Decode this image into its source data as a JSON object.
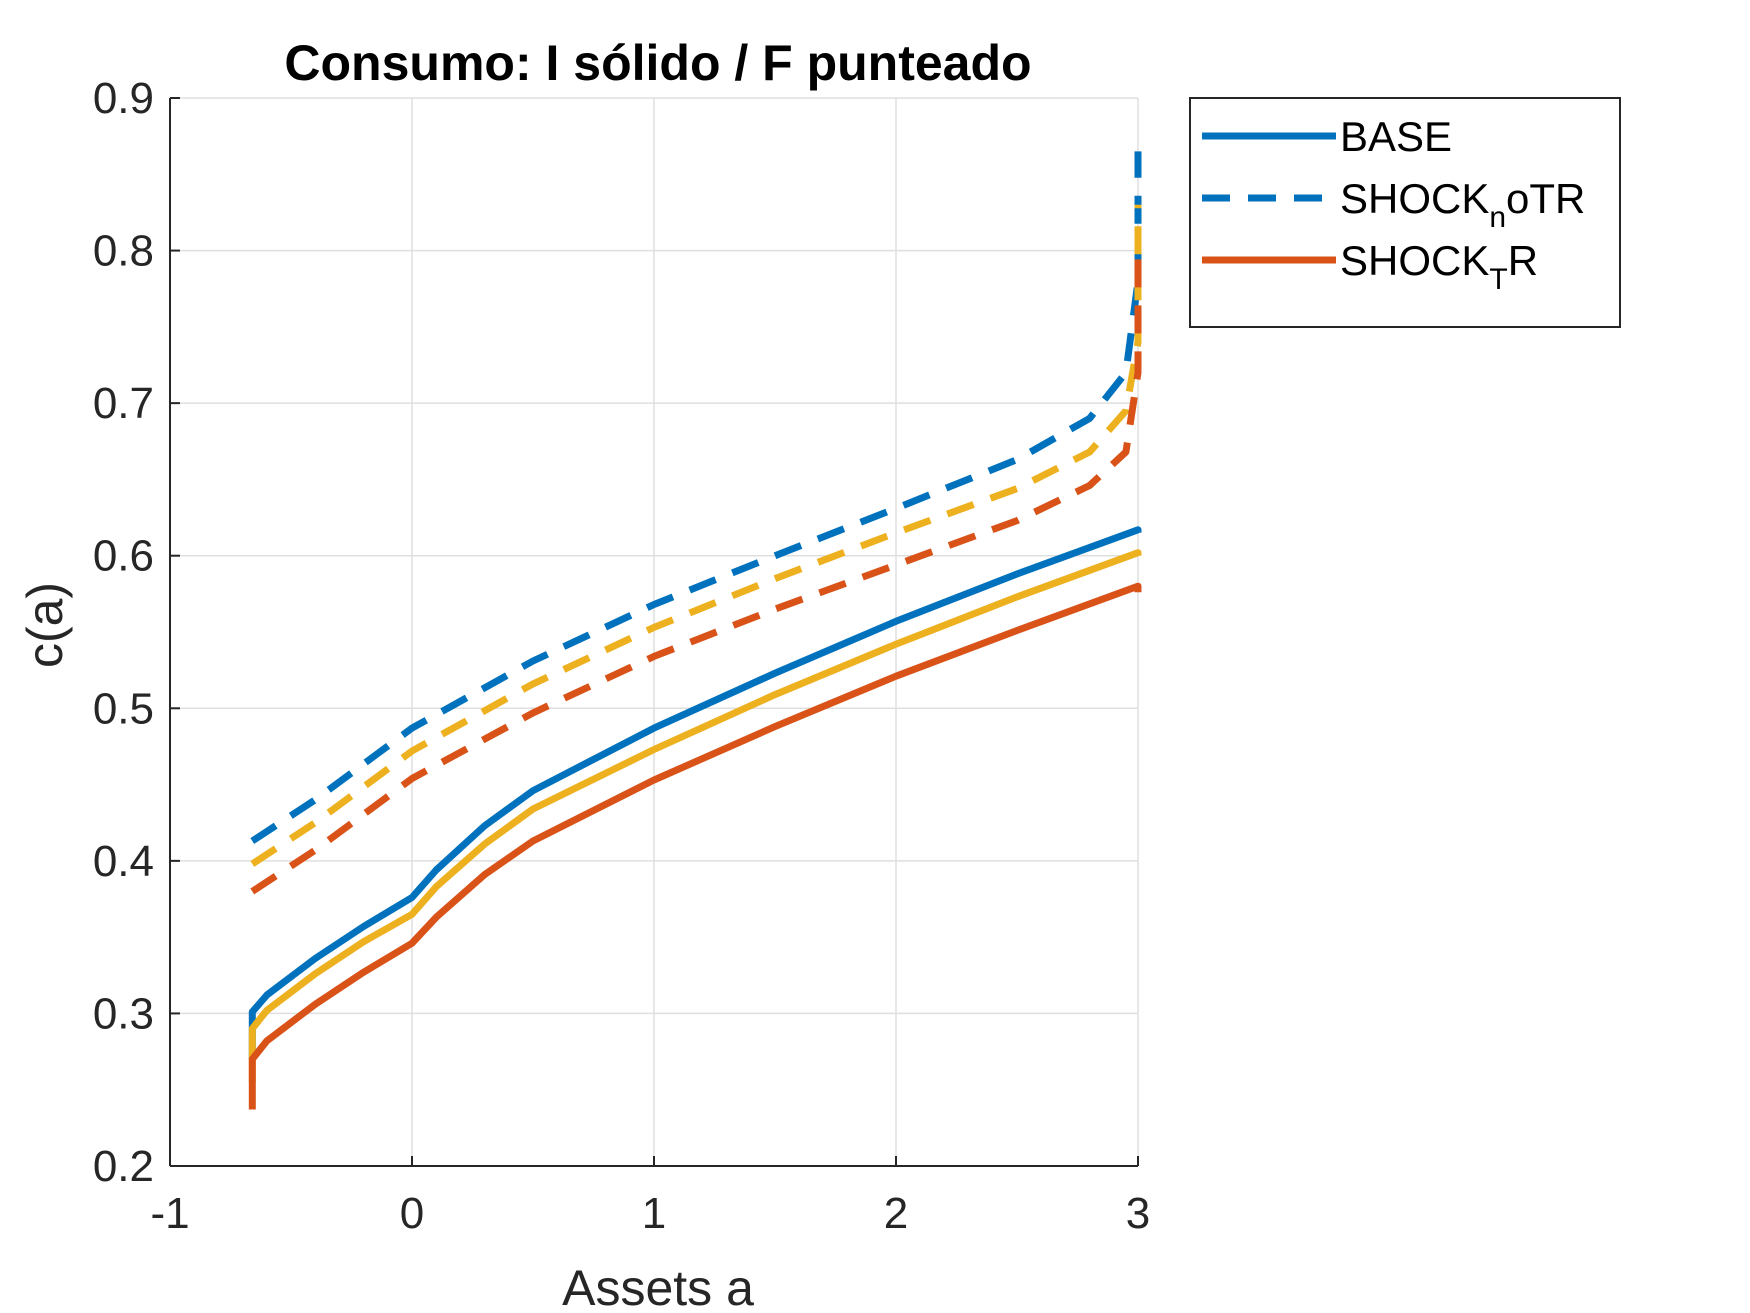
{
  "chart_data": {
    "type": "line",
    "title": "Consumo: I sólido / F punteado",
    "xlabel": "Assets a",
    "ylabel": "c(a)",
    "xlim": [
      -1,
      3
    ],
    "ylim": [
      0.2,
      0.9
    ],
    "xticks": [
      "-1",
      "0",
      "1",
      "2",
      "3"
    ],
    "yticks": [
      "0.2",
      "0.3",
      "0.4",
      "0.5",
      "0.6",
      "0.7",
      "0.8",
      "0.9"
    ],
    "grid": true,
    "legend": {
      "placement": "outside-top-right",
      "entries": [
        {
          "main": "BASE",
          "sub": "",
          "tail": "",
          "color": "#0072BD",
          "style": "solid"
        },
        {
          "main": "SHOCK",
          "sub": "n",
          "tail": "oTR",
          "color": "#0072BD",
          "style": "dashed"
        },
        {
          "main": "SHOCK",
          "sub": "T",
          "tail": "R",
          "color": "#D95319",
          "style": "solid"
        }
      ]
    },
    "series": [
      {
        "color": "#0072BD",
        "style": "solid",
        "x": [
          -0.66,
          -0.66,
          -0.6,
          -0.4,
          -0.2,
          0,
          0.1,
          0.3,
          0.5,
          1,
          1.5,
          2,
          2.5,
          3,
          3
        ],
        "y": [
          0.27,
          0.301,
          0.312,
          0.336,
          0.357,
          0.376,
          0.394,
          0.423,
          0.446,
          0.487,
          0.523,
          0.557,
          0.588,
          0.617,
          0.615
        ]
      },
      {
        "color": "#EDB120",
        "style": "solid",
        "x": [
          -0.66,
          -0.66,
          -0.6,
          -0.4,
          -0.2,
          0,
          0.1,
          0.3,
          0.5,
          1,
          1.5,
          2,
          2.5,
          3,
          3
        ],
        "y": [
          0.255,
          0.29,
          0.302,
          0.326,
          0.347,
          0.365,
          0.383,
          0.411,
          0.434,
          0.473,
          0.509,
          0.542,
          0.573,
          0.602,
          0.6
        ]
      },
      {
        "color": "#D95319",
        "style": "solid",
        "x": [
          -0.66,
          -0.66,
          -0.6,
          -0.4,
          -0.2,
          0,
          0.1,
          0.3,
          0.5,
          1,
          1.5,
          2,
          2.5,
          3,
          3
        ],
        "y": [
          0.237,
          0.27,
          0.282,
          0.306,
          0.327,
          0.346,
          0.363,
          0.391,
          0.413,
          0.453,
          0.488,
          0.521,
          0.551,
          0.58,
          0.576
        ]
      },
      {
        "color": "#0072BD",
        "style": "dashed",
        "x": [
          -0.66,
          -0.4,
          0,
          0.5,
          1,
          1.5,
          2,
          2.5,
          2.8,
          2.95,
          3,
          3
        ],
        "y": [
          0.413,
          0.44,
          0.487,
          0.531,
          0.568,
          0.6,
          0.631,
          0.663,
          0.69,
          0.72,
          0.78,
          0.865
        ]
      },
      {
        "color": "#EDB120",
        "style": "dashed",
        "x": [
          -0.66,
          -0.4,
          0,
          0.5,
          1,
          1.5,
          2,
          2.5,
          2.8,
          2.95,
          3,
          3
        ],
        "y": [
          0.398,
          0.425,
          0.472,
          0.516,
          0.553,
          0.585,
          0.615,
          0.644,
          0.668,
          0.695,
          0.74,
          0.83
        ]
      },
      {
        "color": "#D95319",
        "style": "dashed",
        "x": [
          -0.66,
          -0.4,
          0,
          0.5,
          1,
          1.5,
          2,
          2.5,
          2.8,
          2.95,
          3,
          3
        ],
        "y": [
          0.38,
          0.407,
          0.454,
          0.497,
          0.534,
          0.565,
          0.594,
          0.623,
          0.646,
          0.668,
          0.72,
          0.8
        ]
      }
    ]
  }
}
